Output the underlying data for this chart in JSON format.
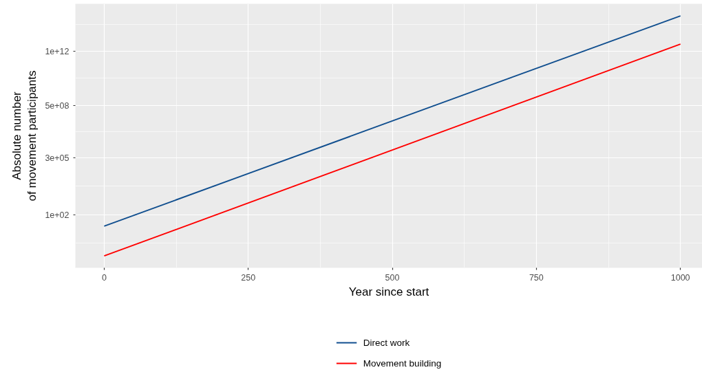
{
  "chart_data": {
    "type": "line",
    "xlabel": "Year since start",
    "ylabel": "Absolute number\nof movement participants",
    "x": [
      0,
      1000
    ],
    "series": [
      {
        "name": "Direct work",
        "color": "#114f8f",
        "values": [
          20,
          150000000000000.0
        ]
      },
      {
        "name": "Movement building",
        "color": "#ff0000",
        "values": [
          0.3,
          2800000000000.0
        ]
      }
    ],
    "xlim": [
      -50,
      1038
    ],
    "xticks": [
      0,
      250,
      500,
      750,
      1000
    ],
    "ylim": [
      0.056,
      820000000000000.0
    ],
    "yticks": [
      {
        "value": 100,
        "label": "1e+02"
      },
      {
        "value": 300000,
        "label": "3e+05"
      },
      {
        "value": 500000000,
        "label": "5e+08"
      },
      {
        "value": 1000000000000,
        "label": "1e+12"
      }
    ],
    "log": true,
    "grid": true,
    "legend": "bottom",
    "line_style": "solid"
  }
}
